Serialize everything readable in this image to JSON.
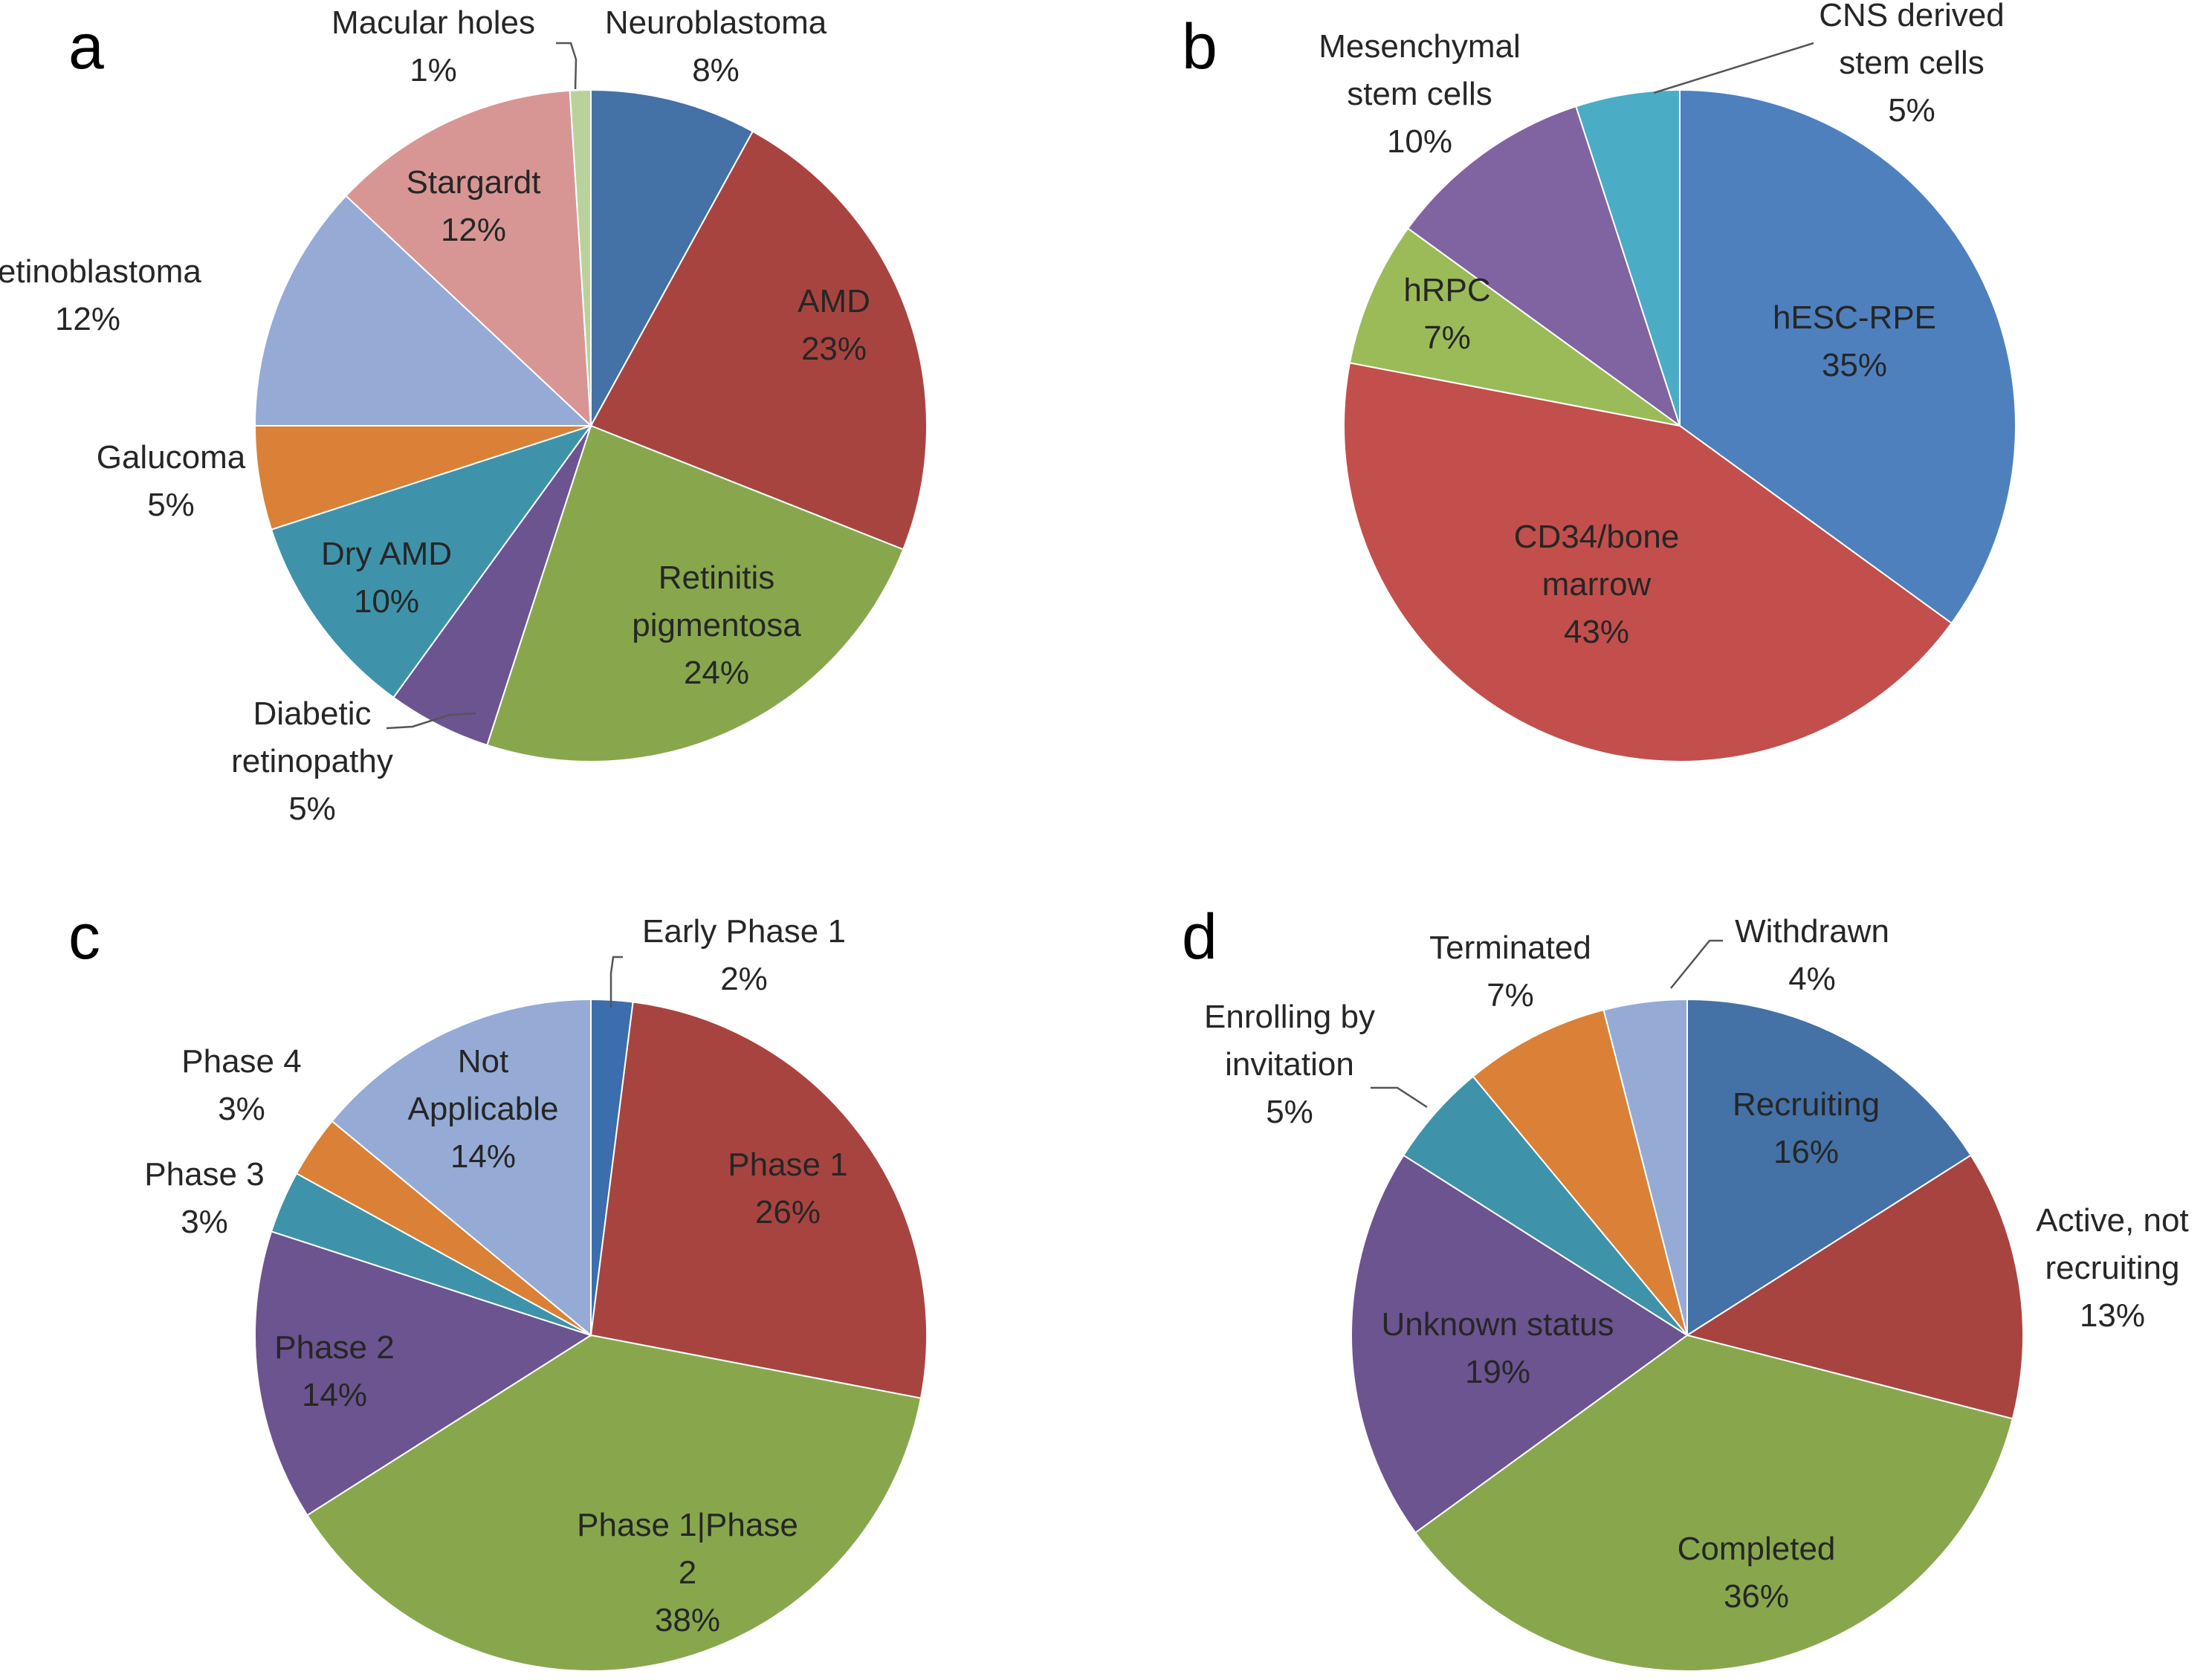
{
  "figure": {
    "title": ""
  },
  "chart_data": [
    {
      "type": "pie",
      "panel": "a",
      "title": "",
      "slices": [
        {
          "name": "Neuroblastoma",
          "lines": [
            "Neuroblastoma",
            "8%"
          ],
          "value": 8,
          "color": "#4471A6"
        },
        {
          "name": "AMD",
          "lines": [
            "AMD",
            "23%"
          ],
          "value": 23,
          "color": "#A84440"
        },
        {
          "name": "Retinitis pigmentosa",
          "lines": [
            "Retinitis",
            "pigmentosa",
            "24%"
          ],
          "value": 24,
          "color": "#88A74D"
        },
        {
          "name": "Diabetic retinopathy",
          "lines": [
            "Diabetic",
            "retinopathy",
            "5%"
          ],
          "value": 5,
          "color": "#6B5490"
        },
        {
          "name": "Dry AMD",
          "lines": [
            "Dry AMD",
            "10%"
          ],
          "value": 10,
          "color": "#3E93AA"
        },
        {
          "name": "Galucoma",
          "lines": [
            "Galucoma",
            "5%"
          ],
          "value": 5,
          "color": "#DA8137"
        },
        {
          "name": "Retinoblastoma",
          "lines": [
            "Retinoblastoma",
            "12%"
          ],
          "value": 12,
          "color": "#95ABD6"
        },
        {
          "name": "Stargardt",
          "lines": [
            "Stargardt",
            "12%"
          ],
          "value": 12,
          "color": "#D79694"
        },
        {
          "name": "Macular holes",
          "lines": [
            "Macular holes",
            "1%"
          ],
          "value": 1,
          "color": "#B9D29B"
        }
      ]
    },
    {
      "type": "pie",
      "panel": "b",
      "title": "",
      "slices": [
        {
          "name": "hESC-RPE",
          "lines": [
            "hESC-RPE",
            "35%"
          ],
          "value": 35,
          "color": "#4E80BE"
        },
        {
          "name": "CD34/bone marrow",
          "lines": [
            "CD34/bone",
            "marrow",
            "43%"
          ],
          "value": 43,
          "color": "#C24F4C"
        },
        {
          "name": "hRPC",
          "lines": [
            "hRPC",
            "7%"
          ],
          "value": 7,
          "color": "#9BBB58"
        },
        {
          "name": "Mesenchymal stem cells",
          "lines": [
            "Mesenchymal",
            "stem cells",
            "10%"
          ],
          "value": 10,
          "color": "#8064A1"
        },
        {
          "name": "CNS derived stem cells",
          "lines": [
            "CNS derived",
            "stem cells",
            "5%"
          ],
          "value": 5,
          "color": "#4BACC6"
        }
      ]
    },
    {
      "type": "pie",
      "panel": "c",
      "title": "",
      "slices": [
        {
          "name": "Early Phase 1",
          "lines": [
            "Early Phase 1",
            "2%"
          ],
          "value": 2,
          "color": "#3C6EAE"
        },
        {
          "name": "Phase 1",
          "lines": [
            "Phase 1",
            "26%"
          ],
          "value": 26,
          "color": "#A84440"
        },
        {
          "name": "Phase 1|Phase 2",
          "lines": [
            "Phase 1|Phase",
            "2",
            "38%"
          ],
          "value": 38,
          "color": "#88A74D"
        },
        {
          "name": "Phase 2",
          "lines": [
            "Phase 2",
            "14%"
          ],
          "value": 14,
          "color": "#6B5490"
        },
        {
          "name": "Phase 3",
          "lines": [
            "Phase 3",
            "3%"
          ],
          "value": 3,
          "color": "#3E93AA"
        },
        {
          "name": "Phase 4",
          "lines": [
            "Phase 4",
            "3%"
          ],
          "value": 3,
          "color": "#DA8137"
        },
        {
          "name": "Not Applicable",
          "lines": [
            "Not",
            "Applicable",
            "14%"
          ],
          "value": 14,
          "color": "#95ABD6"
        }
      ]
    },
    {
      "type": "pie",
      "panel": "d",
      "title": "",
      "slices": [
        {
          "name": "Recruiting",
          "lines": [
            "Recruiting",
            "16%"
          ],
          "value": 16,
          "color": "#4471A6"
        },
        {
          "name": "Active, not recruiting",
          "lines": [
            "Active, not",
            "recruiting",
            "13%"
          ],
          "value": 13,
          "color": "#A84440"
        },
        {
          "name": "Completed",
          "lines": [
            "Completed",
            "36%"
          ],
          "value": 36,
          "color": "#88A74D"
        },
        {
          "name": "Unknown status",
          "lines": [
            "Unknown status",
            "19%"
          ],
          "value": 19,
          "color": "#6B5490"
        },
        {
          "name": "Enrolling by invitation",
          "lines": [
            "Enrolling by",
            "invitation",
            "5%"
          ],
          "value": 5,
          "color": "#3E93AA"
        },
        {
          "name": "Terminated",
          "lines": [
            "Terminated",
            "7%"
          ],
          "value": 7,
          "color": "#DA8137"
        },
        {
          "name": "Withdrawn",
          "lines": [
            "Withdrawn",
            "4%"
          ],
          "value": 4,
          "color": "#95ABD6"
        }
      ]
    }
  ]
}
